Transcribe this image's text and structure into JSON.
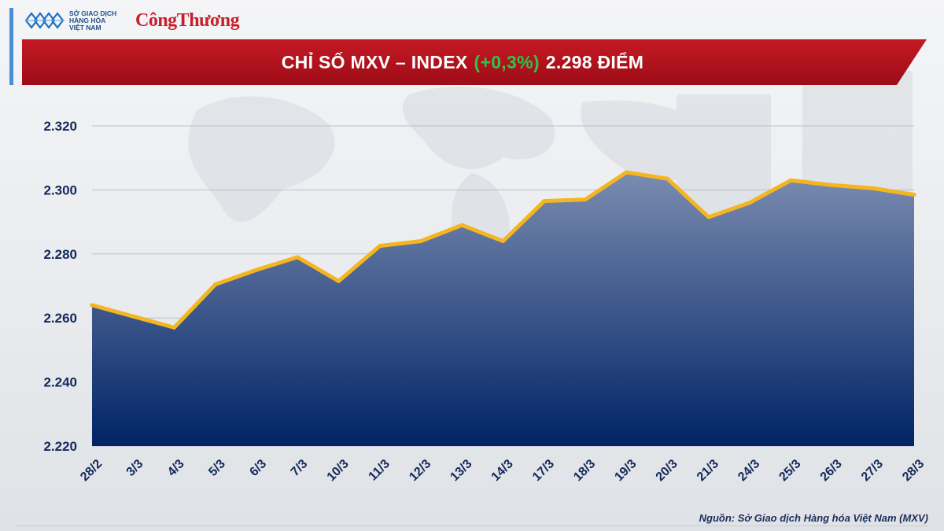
{
  "header": {
    "mxv_logo_lines": [
      "SỞ GIAO DỊCH",
      "HÀNG HÓA",
      "VIỆT NAM"
    ],
    "publisher_logo": "CôngThương",
    "title_prefix": "CHỈ SỐ MXV – INDEX",
    "title_change": "(+0,3%)",
    "title_suffix": "2.298 ĐIỂM"
  },
  "colors": {
    "title_bar": "#b2101c",
    "change_text": "#31c24a",
    "line": "#f5b520",
    "area_top": "#7a8cb0",
    "area_bottom": "#002366",
    "axis_text": "#13295a"
  },
  "chart_data": {
    "type": "area",
    "title": "CHỈ SỐ MXV – INDEX (+0,3%) 2.298 ĐIỂM",
    "xlabel": "",
    "ylabel": "",
    "categories": [
      "28/2",
      "3/3",
      "4/3",
      "5/3",
      "6/3",
      "7/3",
      "10/3",
      "11/3",
      "12/3",
      "13/3",
      "14/3",
      "17/3",
      "18/3",
      "19/3",
      "20/3",
      "21/3",
      "24/3",
      "25/3",
      "26/3",
      "27/3",
      "28/3"
    ],
    "series": [
      {
        "values": [
          2264,
          2260.5,
          2257,
          2270.5,
          2275,
          2279,
          2271.5,
          2282.5,
          2284,
          2289,
          2284,
          2296.5,
          2297,
          2305.5,
          2303.5,
          2291.5,
          2296,
          2303,
          2301.5,
          2300.5,
          2298.5
        ]
      }
    ],
    "y_ticks": [
      "2.220",
      "2.240",
      "2.260",
      "2.280",
      "2.300",
      "2.320"
    ],
    "y_tick_values": [
      2220,
      2240,
      2260,
      2280,
      2300,
      2320
    ],
    "ylim": [
      2220,
      2320
    ],
    "grid": true,
    "legend": "none"
  },
  "footer": {
    "source": "Nguồn: Sở Giao dịch Hàng hóa Việt Nam (MXV)"
  }
}
